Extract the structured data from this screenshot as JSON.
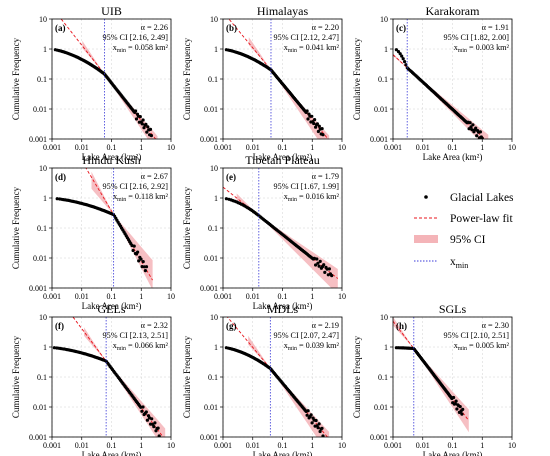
{
  "figure": {
    "shared": {
      "xlabel": "Lake Area (km²)",
      "ylabel": "Cumulative Frequency",
      "xticks": [
        "0.001",
        "0.01",
        "0.1",
        "1",
        "10"
      ],
      "yticks": [
        "0.001",
        "0.01",
        "0.1",
        "1",
        "10"
      ]
    },
    "legend": {
      "items": [
        {
          "label": "Glacial Lakes",
          "kind": "points"
        },
        {
          "label": "Power-law fit",
          "kind": "dashed-line"
        },
        {
          "label": "95% CI",
          "kind": "band"
        },
        {
          "label": "x",
          "sub": "min",
          "kind": "dotted-line"
        }
      ]
    },
    "colors": {
      "points": "#000000",
      "fit": "#e8141c",
      "band": "#f4b4b8",
      "xmin": "#3a3ad8",
      "grid": "#d0d0d0"
    }
  },
  "chart_data": [
    {
      "panel": "(a)",
      "title": "UIB",
      "type": "scatter",
      "x_scale": "log",
      "y_scale": "log",
      "xlim": [
        0.001,
        10
      ],
      "ylim": [
        0.001,
        10
      ],
      "alpha": 2.26,
      "ci": [
        2.16,
        2.49
      ],
      "xmin": 0.058,
      "stats": {
        "alpha": "α = 2.26",
        "ci": "95% CI [2.16, 2.49]",
        "xmin_pre": "x",
        "xmin_sub": "min",
        "xmin_post": " = 0.058 km²"
      },
      "n": 90,
      "x_first": 0.0013,
      "x_last": 2.2,
      "y_last": 0.0015
    },
    {
      "panel": "(b)",
      "title": "Himalayas",
      "type": "scatter",
      "x_scale": "log",
      "y_scale": "log",
      "xlim": [
        0.001,
        10
      ],
      "ylim": [
        0.001,
        10
      ],
      "alpha": 2.2,
      "ci": [
        2.12,
        2.47
      ],
      "xmin": 0.041,
      "stats": {
        "alpha": "α = 2.20",
        "ci": "95% CI [2.12, 2.47]",
        "xmin_pre": "x",
        "xmin_sub": "min",
        "xmin_post": " = 0.041 km²"
      },
      "n": 90,
      "x_first": 0.0013,
      "x_last": 2.3,
      "y_last": 0.0016
    },
    {
      "panel": "(c)",
      "title": "Karakoram",
      "type": "scatter",
      "x_scale": "log",
      "y_scale": "log",
      "xlim": [
        0.001,
        10
      ],
      "ylim": [
        0.001,
        10
      ],
      "alpha": 1.91,
      "ci": [
        1.82,
        2.0
      ],
      "xmin": 0.003,
      "stats": {
        "alpha": "α = 1.91",
        "ci": "95% CI [1.82, 2.00]",
        "xmin_pre": "x",
        "xmin_sub": "min",
        "xmin_post": " = 0.003 km²"
      },
      "n": 80,
      "x_first": 0.0013,
      "x_last": 1.0,
      "y_last": 0.0012
    },
    {
      "panel": "(d)",
      "title": "Hindu Kush",
      "type": "scatter",
      "x_scale": "log",
      "y_scale": "log",
      "xlim": [
        0.001,
        10
      ],
      "ylim": [
        0.001,
        10
      ],
      "alpha": 2.67,
      "ci": [
        2.16,
        2.92
      ],
      "xmin": 0.118,
      "stats": {
        "alpha": "α = 2.67",
        "ci": "95% CI [2.16, 2.92]",
        "xmin_pre": "x",
        "xmin_sub": "min",
        "xmin_post": " = 0.118 km²"
      },
      "n": 70,
      "x_first": 0.0015,
      "x_last": 1.5,
      "y_last": 0.004
    },
    {
      "panel": "(e)",
      "title": "Tibetan Plateau",
      "type": "scatter",
      "x_scale": "log",
      "y_scale": "log",
      "xlim": [
        0.001,
        10
      ],
      "ylim": [
        0.001,
        10
      ],
      "alpha": 1.79,
      "ci": [
        1.67,
        1.99
      ],
      "xmin": 0.016,
      "stats": {
        "alpha": "α = 1.79",
        "ci": "95% CI [1.67, 1.99]",
        "xmin_pre": "x",
        "xmin_sub": "min",
        "xmin_post": " = 0.016 km²"
      },
      "n": 80,
      "x_first": 0.0013,
      "x_last": 4.5,
      "y_last": 0.003
    },
    {
      "panel": "(f)",
      "title": "GELs",
      "type": "scatter",
      "x_scale": "log",
      "y_scale": "log",
      "xlim": [
        0.001,
        10
      ],
      "ylim": [
        0.001,
        10
      ],
      "alpha": 2.32,
      "ci": [
        2.13,
        2.51
      ],
      "xmin": 0.066,
      "stats": {
        "alpha": "α = 2.32",
        "ci": "95% CI [2.13, 2.51]",
        "xmin_pre": "x",
        "xmin_sub": "min",
        "xmin_post": " = 0.066 km²"
      },
      "n": 85,
      "x_first": 0.0012,
      "x_last": 4.0,
      "y_last": 0.0015
    },
    {
      "panel": "(g)",
      "title": "MDLs",
      "type": "scatter",
      "x_scale": "log",
      "y_scale": "log",
      "xlim": [
        0.001,
        10
      ],
      "ylim": [
        0.001,
        10
      ],
      "alpha": 2.19,
      "ci": [
        2.07,
        2.47
      ],
      "xmin": 0.039,
      "stats": {
        "alpha": "α = 2.19",
        "ci": "95% CI [2.07, 2.47]",
        "xmin_pre": "x",
        "xmin_sub": "min",
        "xmin_post": " = 0.039 km²"
      },
      "n": 85,
      "x_first": 0.0013,
      "x_last": 2.3,
      "y_last": 0.0015
    },
    {
      "panel": "(h)",
      "title": "SGLs",
      "type": "scatter",
      "x_scale": "log",
      "y_scale": "log",
      "xlim": [
        0.001,
        10
      ],
      "ylim": [
        0.001,
        10
      ],
      "alpha": 2.3,
      "ci": [
        2.1,
        2.51
      ],
      "xmin": 0.005,
      "stats": {
        "alpha": "α = 2.30",
        "ci": "95% CI [2.10, 2.51]",
        "xmin_pre": "x",
        "xmin_sub": "min",
        "xmin_post": " = 0.005 km²"
      },
      "n": 70,
      "x_first": 0.0013,
      "x_last": 0.22,
      "y_last": 0.0065
    }
  ]
}
